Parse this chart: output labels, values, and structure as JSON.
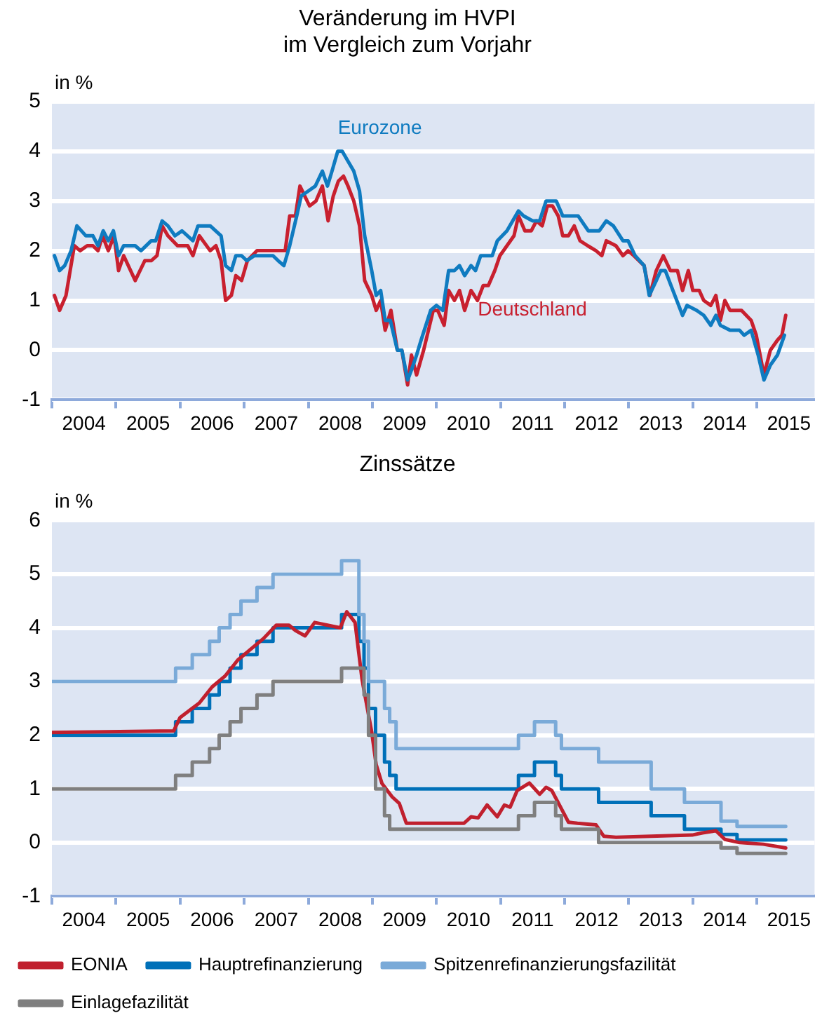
{
  "chart_data": [
    {
      "type": "line",
      "title": "Veränderung im HVPI\nim Vergleich zum Vorjahr",
      "ylabel": "in %",
      "xlim": [
        2004,
        2015.9
      ],
      "xticks": [
        {
          "value": 2004,
          "label": null
        },
        {
          "value": 2004.5,
          "label": "2004"
        },
        {
          "value": 2005,
          "label": null
        },
        {
          "value": 2005.5,
          "label": "2005"
        },
        {
          "value": 2006,
          "label": null
        },
        {
          "value": 2006.5,
          "label": "2006"
        },
        {
          "value": 2007,
          "label": null
        },
        {
          "value": 2007.5,
          "label": "2007"
        },
        {
          "value": 2008,
          "label": null
        },
        {
          "value": 2008.5,
          "label": "2008"
        },
        {
          "value": 2009,
          "label": null
        },
        {
          "value": 2009.5,
          "label": "2009"
        },
        {
          "value": 2010,
          "label": null
        },
        {
          "value": 2010.5,
          "label": "2010"
        },
        {
          "value": 2011,
          "label": null
        },
        {
          "value": 2011.5,
          "label": "2011"
        },
        {
          "value": 2012,
          "label": null
        },
        {
          "value": 2012.5,
          "label": "2012"
        },
        {
          "value": 2013,
          "label": null
        },
        {
          "value": 2013.5,
          "label": "2013"
        },
        {
          "value": 2014,
          "label": null
        },
        {
          "value": 2014.5,
          "label": "2014"
        },
        {
          "value": 2015,
          "label": null
        },
        {
          "value": 2015.5,
          "label": "2015"
        }
      ],
      "ylim": [
        -1,
        5
      ],
      "yticks": [
        -1,
        0,
        1,
        2,
        3,
        4,
        5
      ],
      "grid": "y",
      "series": [
        {
          "name": "Eurozone",
          "color": "#0f7bc0",
          "x": [
            2004.04,
            2004.12,
            2004.2,
            2004.3,
            2004.39,
            2004.53,
            2004.64,
            2004.72,
            2004.8,
            2004.88,
            2004.96,
            2005.04,
            2005.12,
            2005.3,
            2005.39,
            2005.55,
            2005.62,
            2005.72,
            2005.81,
            2005.92,
            2006.03,
            2006.2,
            2006.28,
            2006.47,
            2006.64,
            2006.71,
            2006.8,
            2006.87,
            2006.96,
            2007.04,
            2007.16,
            2007.45,
            2007.53,
            2007.62,
            2007.71,
            2007.82,
            2007.89,
            2008.0,
            2008.11,
            2008.22,
            2008.3,
            2008.37,
            2008.46,
            2008.53,
            2008.62,
            2008.71,
            2008.8,
            2008.88,
            2008.99,
            2009.06,
            2009.13,
            2009.2,
            2009.28,
            2009.39,
            2009.46,
            2009.55,
            2009.61,
            2009.69,
            2009.76,
            2009.91,
            2010.0,
            2010.1,
            2010.19,
            2010.28,
            2010.36,
            2010.44,
            2010.54,
            2010.61,
            2010.69,
            2010.87,
            2010.95,
            2011.1,
            2011.19,
            2011.28,
            2011.36,
            2011.5,
            2011.61,
            2011.71,
            2011.87,
            2011.97,
            2012.21,
            2012.37,
            2012.54,
            2012.65,
            2012.76,
            2012.91,
            2012.99,
            2013.1,
            2013.24,
            2013.32,
            2013.43,
            2013.5,
            2013.57,
            2013.69,
            2013.84,
            2013.91,
            2014.06,
            2014.17,
            2014.28,
            2014.36,
            2014.43,
            2014.58,
            2014.73,
            2014.8,
            2014.91,
            2015.02,
            2015.11,
            2015.21,
            2015.32,
            2015.43
          ],
          "values": [
            1.9,
            1.6,
            1.7,
            2.0,
            2.5,
            2.3,
            2.3,
            2.1,
            2.4,
            2.2,
            2.4,
            1.9,
            2.1,
            2.1,
            2.0,
            2.2,
            2.2,
            2.6,
            2.5,
            2.3,
            2.4,
            2.2,
            2.5,
            2.5,
            2.3,
            1.7,
            1.6,
            1.9,
            1.9,
            1.8,
            1.9,
            1.9,
            1.8,
            1.7,
            2.1,
            2.7,
            3.1,
            3.2,
            3.3,
            3.6,
            3.3,
            3.6,
            4.0,
            4.0,
            3.8,
            3.6,
            3.2,
            2.3,
            1.6,
            1.1,
            1.2,
            0.6,
            0.6,
            0.0,
            0.0,
            -0.6,
            -0.4,
            -0.1,
            0.2,
            0.8,
            0.9,
            0.8,
            1.6,
            1.6,
            1.7,
            1.5,
            1.7,
            1.6,
            1.9,
            1.9,
            2.2,
            2.4,
            2.6,
            2.8,
            2.7,
            2.6,
            2.6,
            3.0,
            3.0,
            2.7,
            2.7,
            2.4,
            2.4,
            2.6,
            2.5,
            2.2,
            2.2,
            1.9,
            1.7,
            1.1,
            1.4,
            1.6,
            1.6,
            1.2,
            0.7,
            0.9,
            0.8,
            0.7,
            0.5,
            0.7,
            0.5,
            0.4,
            0.4,
            0.3,
            0.4,
            -0.1,
            -0.6,
            -0.3,
            -0.1,
            0.3
          ]
        },
        {
          "name": "Deutschland",
          "color": "#c8202f",
          "x": [
            2004.04,
            2004.12,
            2004.22,
            2004.35,
            2004.44,
            2004.55,
            2004.64,
            2004.72,
            2004.79,
            2004.88,
            2004.97,
            2005.04,
            2005.12,
            2005.3,
            2005.45,
            2005.55,
            2005.64,
            2005.72,
            2005.81,
            2005.96,
            2006.12,
            2006.2,
            2006.3,
            2006.47,
            2006.56,
            2006.64,
            2006.71,
            2006.8,
            2006.87,
            2006.96,
            2007.05,
            2007.2,
            2007.64,
            2007.71,
            2007.8,
            2007.87,
            2008.02,
            2008.12,
            2008.22,
            2008.31,
            2008.39,
            2008.47,
            2008.55,
            2008.62,
            2008.71,
            2008.8,
            2008.88,
            2008.99,
            2009.06,
            2009.13,
            2009.2,
            2009.29,
            2009.39,
            2009.46,
            2009.55,
            2009.61,
            2009.69,
            2009.8,
            2009.95,
            2010.02,
            2010.12,
            2010.19,
            2010.28,
            2010.36,
            2010.44,
            2010.54,
            2010.64,
            2010.73,
            2010.81,
            2010.91,
            2010.99,
            2011.1,
            2011.21,
            2011.28,
            2011.38,
            2011.48,
            2011.56,
            2011.65,
            2011.73,
            2011.81,
            2011.9,
            2011.97,
            2012.06,
            2012.15,
            2012.24,
            2012.36,
            2012.49,
            2012.58,
            2012.65,
            2012.8,
            2012.91,
            2012.99,
            2013.08,
            2013.24,
            2013.33,
            2013.43,
            2013.54,
            2013.65,
            2013.76,
            2013.84,
            2013.93,
            2014.0,
            2014.1,
            2014.17,
            2014.28,
            2014.36,
            2014.43,
            2014.5,
            2014.58,
            2014.76,
            2014.91,
            2014.99,
            2015.11,
            2015.21,
            2015.32,
            2015.39,
            2015.45
          ],
          "values": [
            1.1,
            0.8,
            1.1,
            2.1,
            2.0,
            2.1,
            2.1,
            2.0,
            2.3,
            2.0,
            2.3,
            1.6,
            1.9,
            1.4,
            1.8,
            1.8,
            1.9,
            2.5,
            2.3,
            2.1,
            2.1,
            1.9,
            2.3,
            2.0,
            2.1,
            1.8,
            1.0,
            1.1,
            1.5,
            1.4,
            1.8,
            2.0,
            2.0,
            2.7,
            2.7,
            3.3,
            2.9,
            3.0,
            3.3,
            2.6,
            3.1,
            3.4,
            3.5,
            3.3,
            3.0,
            2.5,
            1.4,
            1.1,
            0.8,
            1.0,
            0.4,
            0.8,
            0.0,
            0.0,
            -0.7,
            -0.1,
            -0.5,
            0.0,
            0.8,
            0.8,
            0.5,
            1.2,
            1.0,
            1.2,
            0.8,
            1.2,
            1.0,
            1.3,
            1.3,
            1.6,
            1.9,
            2.1,
            2.3,
            2.7,
            2.4,
            2.4,
            2.6,
            2.5,
            2.9,
            2.9,
            2.7,
            2.3,
            2.3,
            2.5,
            2.2,
            2.1,
            2.0,
            1.9,
            2.2,
            2.1,
            1.9,
            2.0,
            1.9,
            1.7,
            1.1,
            1.6,
            1.9,
            1.6,
            1.6,
            1.2,
            1.6,
            1.2,
            1.2,
            1.0,
            0.9,
            1.1,
            0.6,
            1.0,
            0.8,
            0.8,
            0.6,
            0.3,
            -0.5,
            0.0,
            0.2,
            0.3,
            0.7
          ]
        }
      ]
    },
    {
      "type": "step",
      "title": "Zinssätze",
      "ylabel": "in %",
      "xlim": [
        2004,
        2015.9
      ],
      "xticks": [
        {
          "value": 2004,
          "label": null
        },
        {
          "value": 2004.5,
          "label": "2004"
        },
        {
          "value": 2005,
          "label": null
        },
        {
          "value": 2005.5,
          "label": "2005"
        },
        {
          "value": 2006,
          "label": null
        },
        {
          "value": 2006.5,
          "label": "2006"
        },
        {
          "value": 2007,
          "label": null
        },
        {
          "value": 2007.5,
          "label": "2007"
        },
        {
          "value": 2008,
          "label": null
        },
        {
          "value": 2008.5,
          "label": "2008"
        },
        {
          "value": 2009,
          "label": null
        },
        {
          "value": 2009.5,
          "label": "2009"
        },
        {
          "value": 2010,
          "label": null
        },
        {
          "value": 2010.5,
          "label": "2010"
        },
        {
          "value": 2011,
          "label": null
        },
        {
          "value": 2011.5,
          "label": "2011"
        },
        {
          "value": 2012,
          "label": null
        },
        {
          "value": 2012.5,
          "label": "2012"
        },
        {
          "value": 2013,
          "label": null
        },
        {
          "value": 2013.5,
          "label": "2013"
        },
        {
          "value": 2014,
          "label": null
        },
        {
          "value": 2014.5,
          "label": "2014"
        },
        {
          "value": 2015,
          "label": null
        },
        {
          "value": 2015.5,
          "label": "2015"
        }
      ],
      "ylim": [
        -1,
        6
      ],
      "yticks": [
        -1,
        0,
        1,
        2,
        3,
        4,
        5,
        6
      ],
      "grid": "y",
      "legend": "bottom",
      "x": [
        2004.0,
        2005.93,
        2006.19,
        2006.46,
        2006.61,
        2006.78,
        2006.95,
        2007.2,
        2007.45,
        2008.52,
        2008.79,
        2008.87,
        2008.94,
        2009.05,
        2009.19,
        2009.27,
        2009.37,
        2011.28,
        2011.53,
        2011.86,
        2011.95,
        2012.53,
        2013.35,
        2013.87,
        2014.44,
        2014.69,
        2015.45
      ],
      "series": [
        {
          "name": "Spitzenrefinanzierungsfazilität",
          "color": "#7aaad8",
          "values": [
            3.0,
            3.25,
            3.5,
            3.75,
            4.0,
            4.25,
            4.5,
            4.75,
            5.0,
            5.25,
            4.25,
            3.75,
            3.0,
            3.0,
            2.5,
            2.25,
            1.75,
            2.0,
            2.25,
            2.0,
            1.75,
            1.5,
            1.0,
            0.75,
            0.4,
            0.3,
            0.3
          ]
        },
        {
          "name": "Einlagefazilität",
          "color": "#7f7f7f",
          "values": [
            1.0,
            1.25,
            1.5,
            1.75,
            2.0,
            2.25,
            2.5,
            2.75,
            3.0,
            3.25,
            3.25,
            2.75,
            2.0,
            1.0,
            0.5,
            0.25,
            0.25,
            0.5,
            0.75,
            0.5,
            0.25,
            0.0,
            0.0,
            0.0,
            -0.1,
            -0.2,
            -0.2
          ]
        },
        {
          "name": "EONIA",
          "color": "#c0202e",
          "type": "line",
          "x": [
            2004.0,
            2005.9,
            2006.0,
            2006.3,
            2006.5,
            2006.7,
            2006.9,
            2007.1,
            2007.3,
            2007.5,
            2007.7,
            2007.8,
            2007.95,
            2008.1,
            2008.3,
            2008.5,
            2008.6,
            2008.73,
            2008.84,
            2008.99,
            2009.06,
            2009.15,
            2009.31,
            2009.42,
            2009.53,
            2010.43,
            2010.54,
            2010.65,
            2010.79,
            2010.95,
            2011.06,
            2011.15,
            2011.26,
            2011.45,
            2011.61,
            2011.71,
            2011.8,
            2011.91,
            2012.06,
            2012.2,
            2012.49,
            2012.61,
            2012.8,
            2013.99,
            2014.15,
            2014.36,
            2014.5,
            2014.73,
            2015.1,
            2015.45
          ],
          "values": [
            2.05,
            2.08,
            2.33,
            2.6,
            2.9,
            3.1,
            3.4,
            3.6,
            3.8,
            4.05,
            4.05,
            3.95,
            3.85,
            4.1,
            4.05,
            4.0,
            4.3,
            4.1,
            3.03,
            2.06,
            1.45,
            1.1,
            0.85,
            0.73,
            0.36,
            0.36,
            0.48,
            0.46,
            0.7,
            0.48,
            0.7,
            0.66,
            0.97,
            1.11,
            0.9,
            1.03,
            0.97,
            0.72,
            0.38,
            0.36,
            0.33,
            0.12,
            0.1,
            0.14,
            0.18,
            0.22,
            0.06,
            0.0,
            -0.03,
            -0.1
          ]
        },
        {
          "name": "Hauptrefinanzierung",
          "color": "#0070b8",
          "values": [
            2.0,
            2.25,
            2.5,
            2.75,
            3.0,
            3.25,
            3.5,
            3.75,
            4.0,
            4.25,
            3.75,
            3.25,
            2.5,
            2.0,
            1.5,
            1.25,
            1.0,
            1.25,
            1.5,
            1.25,
            1.0,
            0.75,
            0.5,
            0.25,
            0.15,
            0.05,
            0.05
          ]
        }
      ]
    }
  ]
}
